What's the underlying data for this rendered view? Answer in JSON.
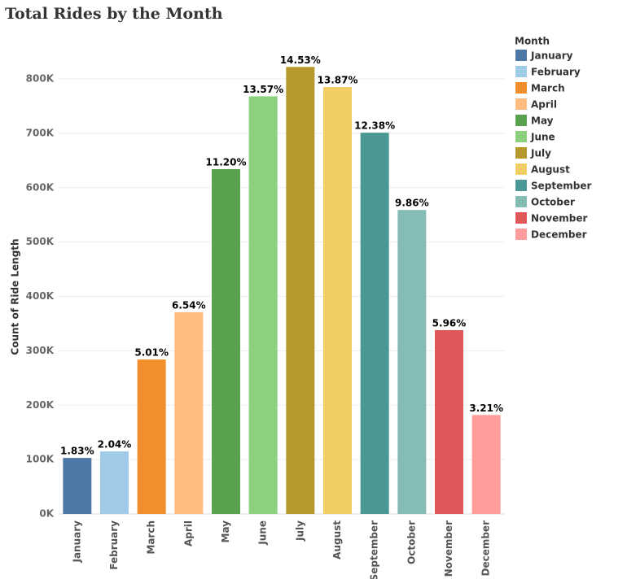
{
  "chart_data": {
    "type": "bar",
    "title": "Total Rides by the Month",
    "y_label": "Count of Ride Length",
    "legend_title": "Month",
    "categories": [
      "January",
      "February",
      "March",
      "April",
      "May",
      "June",
      "July",
      "August",
      "September",
      "October",
      "November",
      "December"
    ],
    "values": [
      103000,
      115000,
      284000,
      371000,
      634000,
      768000,
      822000,
      785000,
      701000,
      559000,
      338000,
      182000
    ],
    "percent_labels": [
      "1.83%",
      "2.04%",
      "5.01%",
      "6.54%",
      "11.20%",
      "13.57%",
      "14.53%",
      "13.87%",
      "12.38%",
      "9.86%",
      "5.96%",
      "3.21%"
    ],
    "colors": [
      "#4e79a7",
      "#a0cbe8",
      "#f28e2b",
      "#ffbe7d",
      "#59a14f",
      "#8cd17d",
      "#b6992d",
      "#f1ce63",
      "#499894",
      "#86bcb6",
      "#e15759",
      "#ff9d9a"
    ],
    "ylim": [
      0,
      800000
    ],
    "yticks": [
      {
        "value": 0,
        "label": "0K"
      },
      {
        "value": 100000,
        "label": "100K"
      },
      {
        "value": 200000,
        "label": "200K"
      },
      {
        "value": 300000,
        "label": "300K"
      },
      {
        "value": 400000,
        "label": "400K"
      },
      {
        "value": 500000,
        "label": "500K"
      },
      {
        "value": 600000,
        "label": "600K"
      },
      {
        "value": 700000,
        "label": "700K"
      },
      {
        "value": 800000,
        "label": "800K"
      }
    ],
    "grid": true,
    "legend": "right"
  }
}
